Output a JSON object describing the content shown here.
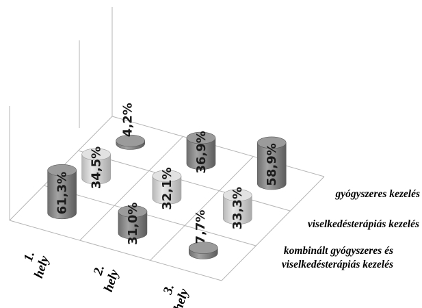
{
  "chart_data": {
    "type": "bar",
    "categories": [
      "1. hely",
      "2. hely",
      "3. hely"
    ],
    "category_lines": [
      [
        "1.",
        "hely"
      ],
      [
        "2.",
        "hely"
      ],
      [
        "3.",
        "hely"
      ]
    ],
    "series": [
      {
        "name": "gyógyszeres kezelés",
        "name_lines": [
          "gyógyszeres kezelés"
        ],
        "values": [
          4.2,
          36.9,
          58.9
        ],
        "labels": [
          "4,2%",
          "36,9%",
          "58,9%"
        ],
        "color": "#8c8c8c"
      },
      {
        "name": "viselkedésterápiás kezelés",
        "name_lines": [
          "viselkedésterápiás kezelés"
        ],
        "values": [
          34.5,
          32.1,
          33.3
        ],
        "labels": [
          "34,5%",
          "32,1%",
          "33,3%"
        ],
        "color": "#c9c9c9"
      },
      {
        "name": "kombinált gyógyszeres és viselkedésterápiás kezelés",
        "name_lines": [
          "kombinált gyógyszeres és",
          "viselkedésterápiás kezelés"
        ],
        "values": [
          61.3,
          31.0,
          7.7
        ],
        "labels": [
          "61,3%",
          "31,0%",
          "7,7%"
        ],
        "color": "#8c8c8c"
      }
    ],
    "bar_shape": "cylinder",
    "projection": "3d",
    "grid": false,
    "legend": "none"
  }
}
